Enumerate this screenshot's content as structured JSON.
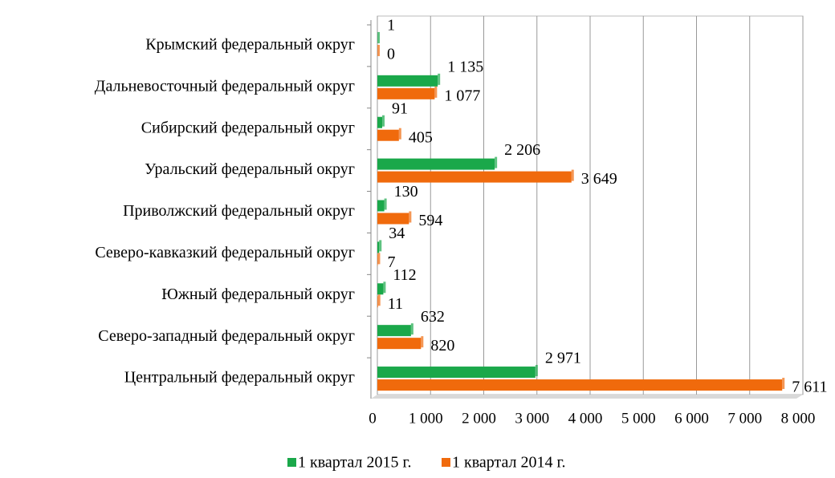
{
  "chart_data": {
    "type": "bar",
    "orientation": "horizontal",
    "categories": [
      "Крымский федеральный округ",
      "Дальневосточный федеральный округ",
      "Сибирский федеральный округ",
      "Уральский федеральный округ",
      "Приволжский федеральный округ",
      "Северо-кавказкий федеральный округ",
      "Южный федеральный округ",
      "Северо-западный федеральный округ",
      "Центральный федеральный округ"
    ],
    "series": [
      {
        "name": "1 квартал 2015 г.",
        "color": "#1aa84a",
        "values": [
          1,
          1135,
          91,
          2206,
          130,
          34,
          112,
          632,
          2971
        ],
        "value_labels": [
          "1",
          "1 135",
          "91",
          "2 206",
          "130",
          "34",
          "112",
          "632",
          "2 971"
        ]
      },
      {
        "name": "1 квартал 2014 г.",
        "color": "#f06a0c",
        "values": [
          0,
          1077,
          405,
          3649,
          594,
          7,
          11,
          820,
          7611
        ],
        "value_labels": [
          "0",
          "1 077",
          "405",
          "3 649",
          "594",
          "7",
          "11",
          "820",
          "7 611"
        ]
      }
    ],
    "xlim": [
      0,
      8000
    ],
    "xticks": [
      0,
      {
        "value": 1000,
        "label": "1 000"
      },
      {
        "value": 2000,
        "label": "2 000"
      },
      {
        "value": 3000,
        "label": "3 000"
      },
      {
        "value": 4000,
        "label": "4 000"
      },
      {
        "value": 5000,
        "label": "5 000"
      },
      {
        "value": 6000,
        "label": "6 000"
      },
      {
        "value": 7000,
        "label": "7 000"
      },
      {
        "value": 8000,
        "label": "8 000"
      }
    ],
    "grid": true,
    "legend": "bottom"
  }
}
